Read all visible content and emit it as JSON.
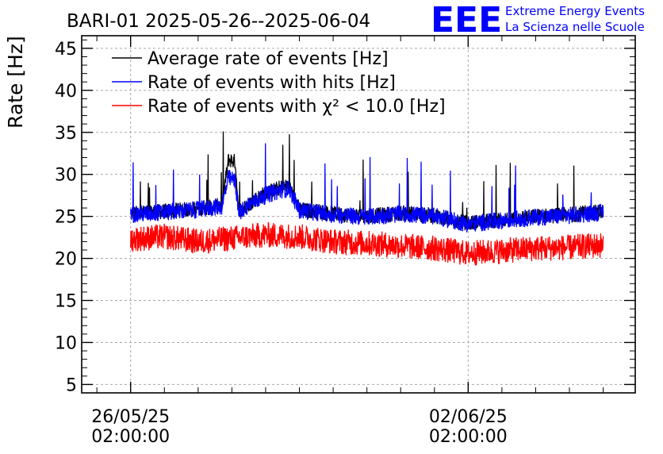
{
  "chart_data": {
    "type": "line",
    "title": "BARI-01 2025-05-26--2025-06-04",
    "ylabel": "Rate [Hz]",
    "xlabel": "",
    "ylim": [
      4,
      46.5
    ],
    "xlim": [
      -1.45,
      14.95
    ],
    "yticks": [
      5,
      10,
      15,
      20,
      25,
      30,
      35,
      40,
      45
    ],
    "xticks": [
      {
        "value": 0,
        "line1": "26/05/25",
        "line2": "02:00:00"
      },
      {
        "value": 10,
        "line1": "02/06/25",
        "line2": "02:00:00"
      }
    ],
    "data_range_days": [
      0,
      14
    ],
    "grid": true,
    "legend_position": "top-left",
    "series": [
      {
        "name": "Average rate of events [Hz]",
        "color": "#000000",
        "x": [
          0,
          1,
          2,
          2.7,
          2.9,
          3.1,
          3.2,
          3.5,
          4,
          4.5,
          4.7,
          5,
          5.5,
          6,
          7,
          8,
          9,
          10,
          11,
          12,
          13,
          14
        ],
        "y": [
          25.3,
          25.6,
          25.9,
          26.3,
          31.8,
          31.5,
          25.5,
          26.5,
          27.8,
          28.5,
          28.6,
          25.8,
          25.6,
          25.3,
          25.0,
          25.4,
          25.1,
          24.2,
          24.6,
          25.0,
          25.2,
          25.6
        ]
      },
      {
        "name": "Rate of events with hits [Hz]",
        "color": "#0000ff",
        "x": [
          0,
          1,
          2,
          2.7,
          2.9,
          3.1,
          3.2,
          3.5,
          4,
          4.5,
          4.7,
          5,
          5.5,
          6,
          7,
          8,
          9,
          10,
          11,
          12,
          13,
          14
        ],
        "y": [
          25.2,
          25.5,
          25.8,
          26.2,
          29.6,
          29.2,
          25.4,
          26.4,
          27.5,
          28.2,
          28.3,
          25.7,
          25.5,
          25.2,
          24.9,
          25.3,
          25.0,
          24.1,
          24.5,
          24.9,
          25.1,
          25.5
        ]
      },
      {
        "name": "Rate of events with χ² < 10.0 [Hz]",
        "color": "#ff0000",
        "x": [
          0,
          1,
          2,
          3,
          4,
          5,
          6,
          7,
          8,
          9,
          10,
          11,
          12,
          13,
          14
        ],
        "y": [
          22.3,
          22.6,
          22.0,
          22.4,
          22.8,
          22.6,
          22.0,
          21.8,
          21.5,
          21.2,
          20.6,
          20.9,
          21.2,
          21.3,
          21.6
        ]
      }
    ]
  },
  "logo": {
    "mark": "EEE",
    "line1": "Extreme Energy Events",
    "line2": "La Scienza nelle Scuole",
    "color": "#0000ff"
  }
}
